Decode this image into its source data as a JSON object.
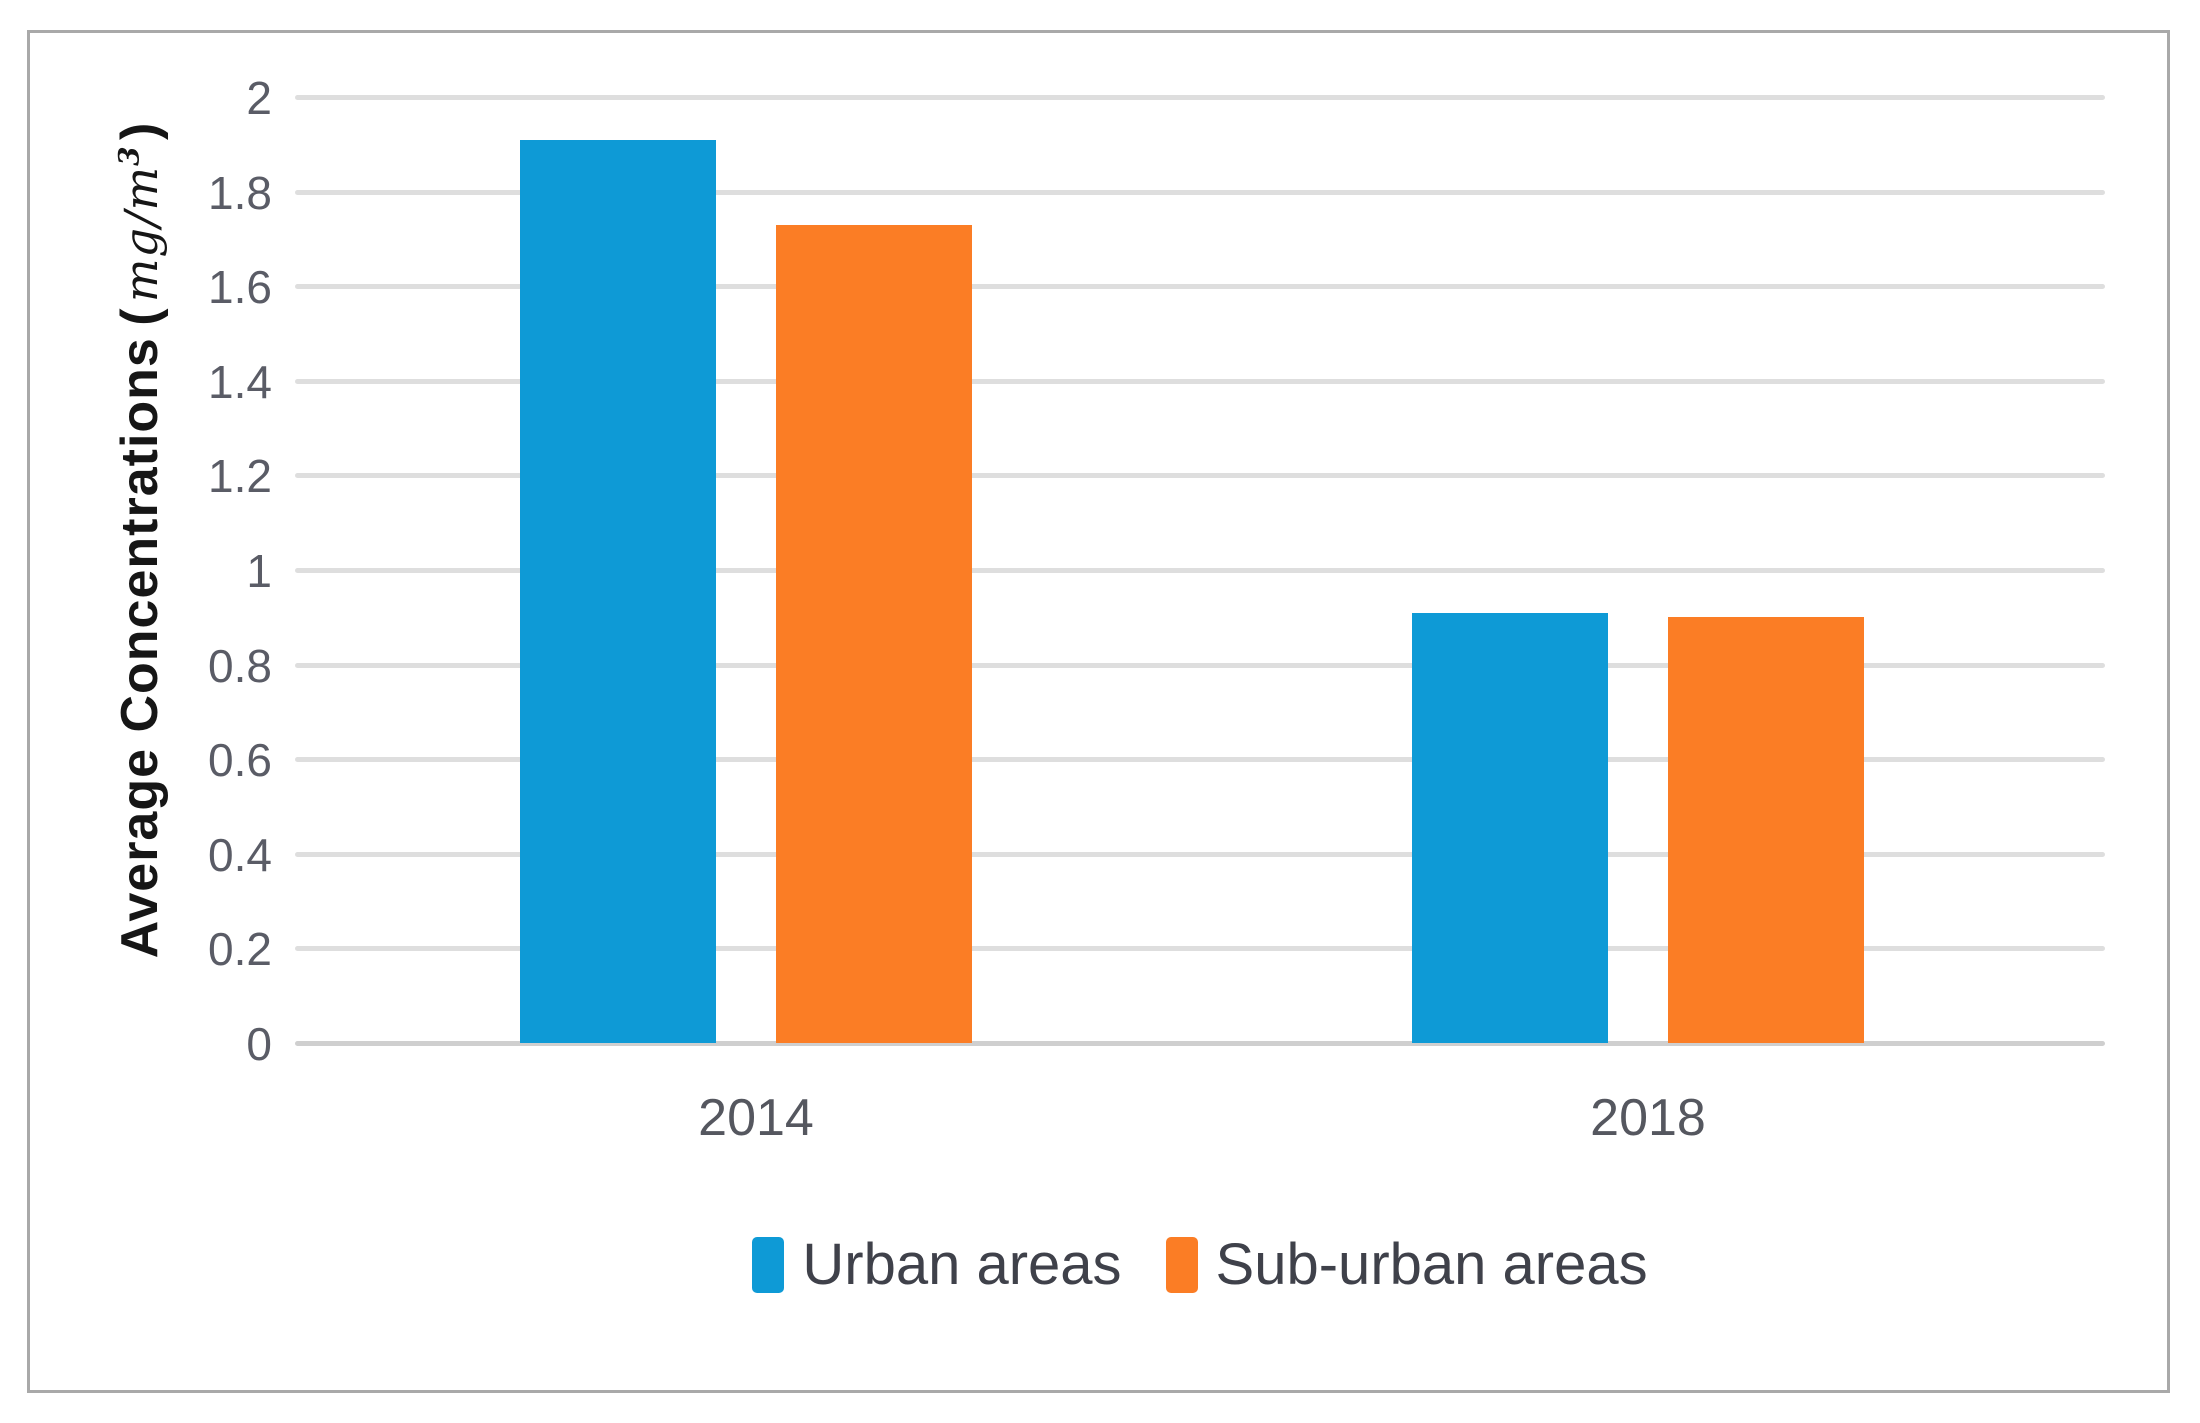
{
  "chart_data": {
    "type": "bar",
    "categories": [
      "2014",
      "2018"
    ],
    "series": [
      {
        "name": "Urban areas",
        "color": "#0E9AD6",
        "values": [
          1.91,
          0.91
        ]
      },
      {
        "name": "Sub-urban areas",
        "color": "#FB7D25",
        "values": [
          1.73,
          0.9
        ]
      }
    ],
    "title": "",
    "xlabel": "",
    "ylabel_main": "Average Concentrations",
    "ylabel_unit": "mg/m",
    "ylabel_unit_sup": "3",
    "yticks": [
      "0",
      "0.2",
      "0.4",
      "0.6",
      "0.8",
      "1",
      "1.2",
      "1.4",
      "1.6",
      "1.8",
      "2"
    ],
    "ylim": [
      0,
      2
    ],
    "grid": true,
    "legend_position": "bottom"
  },
  "colors": {
    "series_urban": "#0E9AD6",
    "series_suburban": "#FB7D25",
    "gridline": "#dedede",
    "axis_baseline": "#cfcfcf",
    "tick_text": "#5a5c66",
    "legend_text": "#3f414a",
    "frame_border": "#a9a9a9",
    "background": "#ffffff"
  }
}
